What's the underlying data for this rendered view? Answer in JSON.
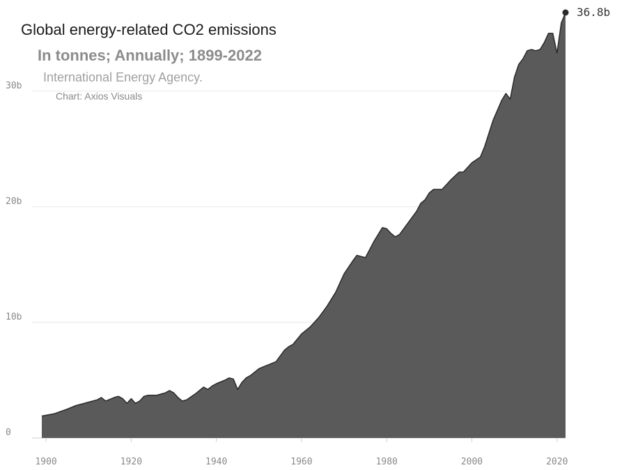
{
  "chart_data": {
    "type": "area",
    "title": "Global energy-related CO2 emissions",
    "subtitle": "In tonnes; Annually; 1899-2022",
    "source": "International Energy Agency.",
    "credit": "Chart: Axios Visuals",
    "xlabel": "",
    "ylabel": "",
    "xlim": [
      1899,
      2022
    ],
    "ylim": [
      0,
      36.8
    ],
    "x_ticks": [
      1900,
      1920,
      1940,
      1960,
      1980,
      2000,
      2020
    ],
    "x_tick_labels": [
      "1900",
      "1920",
      "1940",
      "1960",
      "1980",
      "2000",
      "2020"
    ],
    "y_ticks": [
      0,
      10,
      20,
      30
    ],
    "y_tick_labels": [
      "0",
      "10b",
      "20b",
      "30b"
    ],
    "grid": true,
    "end_label": "36.8b",
    "fill_color": "#5a5a5a",
    "line_color": "#2a2a2a",
    "series": [
      {
        "unit": "billion tonnes",
        "x": [
          1899,
          1902,
          1905,
          1907,
          1908,
          1910,
          1912,
          1913,
          1914,
          1916,
          1917,
          1918,
          1919,
          1920,
          1921,
          1922,
          1923,
          1924,
          1926,
          1927,
          1928,
          1929,
          1930,
          1931,
          1932,
          1933,
          1935,
          1936,
          1937,
          1938,
          1939,
          1940,
          1942,
          1943,
          1944,
          1945,
          1946,
          1947,
          1948,
          1950,
          1952,
          1954,
          1955,
          1956,
          1957,
          1958,
          1960,
          1962,
          1964,
          1966,
          1968,
          1970,
          1972,
          1973,
          1974,
          1975,
          1977,
          1979,
          1980,
          1981,
          1982,
          1983,
          1985,
          1987,
          1988,
          1989,
          1990,
          1991,
          1993,
          1995,
          1997,
          1998,
          2000,
          2002,
          2003,
          2005,
          2007,
          2008,
          2009,
          2010,
          2011,
          2012,
          2013,
          2014,
          2015,
          2016,
          2017,
          2018,
          2019,
          2020,
          2021,
          2022
        ],
        "values": [
          1.9,
          2.1,
          2.5,
          2.8,
          2.9,
          3.1,
          3.3,
          3.5,
          3.2,
          3.5,
          3.6,
          3.4,
          3.0,
          3.4,
          3.0,
          3.2,
          3.6,
          3.7,
          3.7,
          3.8,
          3.9,
          4.1,
          3.9,
          3.5,
          3.2,
          3.3,
          3.8,
          4.1,
          4.4,
          4.2,
          4.5,
          4.7,
          5.0,
          5.2,
          5.1,
          4.2,
          4.8,
          5.2,
          5.4,
          6.0,
          6.3,
          6.6,
          7.1,
          7.6,
          7.9,
          8.1,
          9.0,
          9.6,
          10.4,
          11.4,
          12.6,
          14.2,
          15.3,
          15.8,
          15.7,
          15.6,
          17.0,
          18.2,
          18.1,
          17.7,
          17.4,
          17.6,
          18.6,
          19.6,
          20.3,
          20.6,
          21.2,
          21.5,
          21.5,
          22.3,
          23.0,
          23.0,
          23.8,
          24.3,
          25.2,
          27.5,
          29.2,
          29.8,
          29.3,
          31.2,
          32.3,
          32.8,
          33.5,
          33.6,
          33.5,
          33.6,
          34.2,
          35.0,
          35.0,
          33.3,
          35.9,
          36.8
        ]
      }
    ]
  }
}
